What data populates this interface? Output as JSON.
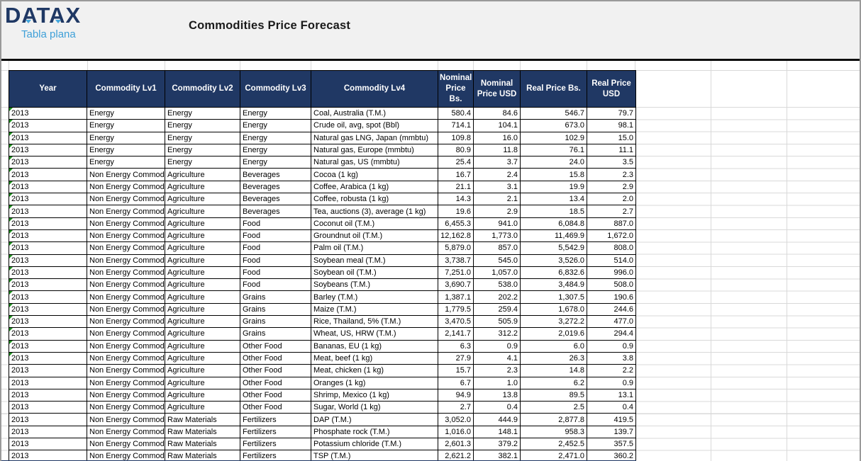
{
  "logo": {
    "name": "DATAX",
    "subtitle": "Tabla plana"
  },
  "header": {
    "title": "Commodities Price Forecast"
  },
  "colors": {
    "header_bg": "#203864",
    "logo_navy": "#1f3864",
    "subtitle_blue": "#3fa0d8",
    "band_bg": "#f1f1f1",
    "indicator_green": "#1e8f1e"
  },
  "table": {
    "columns": [
      "Year",
      "Commodity Lv1",
      "Commodity Lv2",
      "Commodity Lv3",
      "Commodity Lv4",
      "Nominal Price Bs.",
      "Nominal Price USD",
      "Real Price Bs.",
      "Real Price USD"
    ],
    "column_keys": [
      "year",
      "commodity-lv1",
      "commodity-lv2",
      "commodity-lv3",
      "commodity-lv4",
      "nominal-price-bs",
      "nominal-price-usd",
      "real-price-bs",
      "real-price-usd"
    ],
    "numeric_from": 5,
    "rows": [
      {
        "indicator": true,
        "cells": [
          "2013",
          "Energy",
          "Energy",
          "Energy",
          "Coal, Australia (T.M.)",
          "580.4",
          "84.6",
          "546.7",
          "79.7"
        ]
      },
      {
        "indicator": true,
        "cells": [
          "2013",
          "Energy",
          "Energy",
          "Energy",
          "Crude oil, avg, spot (Bbl)",
          "714.1",
          "104.1",
          "673.0",
          "98.1"
        ]
      },
      {
        "indicator": true,
        "cells": [
          "2013",
          "Energy",
          "Energy",
          "Energy",
          "Natural gas LNG, Japan (mmbtu)",
          "109.8",
          "16.0",
          "102.9",
          "15.0"
        ]
      },
      {
        "indicator": true,
        "cells": [
          "2013",
          "Energy",
          "Energy",
          "Energy",
          "Natural gas, Europe (mmbtu)",
          "80.9",
          "11.8",
          "76.1",
          "11.1"
        ]
      },
      {
        "indicator": true,
        "cells": [
          "2013",
          "Energy",
          "Energy",
          "Energy",
          "Natural gas, US (mmbtu)",
          "25.4",
          "3.7",
          "24.0",
          "3.5"
        ]
      },
      {
        "indicator": true,
        "cells": [
          "2013",
          "Non Energy Commodities",
          "Agriculture",
          "Beverages",
          "Cocoa (1 kg)",
          "16.7",
          "2.4",
          "15.8",
          "2.3"
        ]
      },
      {
        "indicator": true,
        "cells": [
          "2013",
          "Non Energy Commodities",
          "Agriculture",
          "Beverages",
          "Coffee, Arabica (1 kg)",
          "21.1",
          "3.1",
          "19.9",
          "2.9"
        ]
      },
      {
        "indicator": true,
        "cells": [
          "2013",
          "Non Energy Commodities",
          "Agriculture",
          "Beverages",
          "Coffee, robusta (1 kg)",
          "14.3",
          "2.1",
          "13.4",
          "2.0"
        ]
      },
      {
        "indicator": true,
        "cells": [
          "2013",
          "Non Energy Commodities",
          "Agriculture",
          "Beverages",
          "Tea, auctions (3), average (1 kg)",
          "19.6",
          "2.9",
          "18.5",
          "2.7"
        ]
      },
      {
        "indicator": true,
        "cells": [
          "2013",
          "Non Energy Commodities",
          "Agriculture",
          "Food",
          "Coconut oil (T.M.)",
          "6,455.3",
          "941.0",
          "6,084.8",
          "887.0"
        ]
      },
      {
        "indicator": true,
        "cells": [
          "2013",
          "Non Energy Commodities",
          "Agriculture",
          "Food",
          "Groundnut oil (T.M.)",
          "12,162.8",
          "1,773.0",
          "11,469.9",
          "1,672.0"
        ]
      },
      {
        "indicator": true,
        "cells": [
          "2013",
          "Non Energy Commodities",
          "Agriculture",
          "Food",
          "Palm oil (T.M.)",
          "5,879.0",
          "857.0",
          "5,542.9",
          "808.0"
        ]
      },
      {
        "indicator": true,
        "cells": [
          "2013",
          "Non Energy Commodities",
          "Agriculture",
          "Food",
          "Soybean meal (T.M.)",
          "3,738.7",
          "545.0",
          "3,526.0",
          "514.0"
        ]
      },
      {
        "indicator": true,
        "cells": [
          "2013",
          "Non Energy Commodities",
          "Agriculture",
          "Food",
          "Soybean oil (T.M.)",
          "7,251.0",
          "1,057.0",
          "6,832.6",
          "996.0"
        ]
      },
      {
        "indicator": true,
        "cells": [
          "2013",
          "Non Energy Commodities",
          "Agriculture",
          "Food",
          "Soybeans (T.M.)",
          "3,690.7",
          "538.0",
          "3,484.9",
          "508.0"
        ]
      },
      {
        "indicator": true,
        "cells": [
          "2013",
          "Non Energy Commodities",
          "Agriculture",
          "Grains",
          "Barley (T.M.)",
          "1,387.1",
          "202.2",
          "1,307.5",
          "190.6"
        ]
      },
      {
        "indicator": true,
        "cells": [
          "2013",
          "Non Energy Commodities",
          "Agriculture",
          "Grains",
          "Maize (T.M.)",
          "1,779.5",
          "259.4",
          "1,678.0",
          "244.6"
        ]
      },
      {
        "indicator": true,
        "cells": [
          "2013",
          "Non Energy Commodities",
          "Agriculture",
          "Grains",
          "Rice, Thailand, 5% (T.M.)",
          "3,470.5",
          "505.9",
          "3,272.2",
          "477.0"
        ]
      },
      {
        "indicator": true,
        "cells": [
          "2013",
          "Non Energy Commodities",
          "Agriculture",
          "Grains",
          "Wheat, US, HRW (T.M.)",
          "2,141.7",
          "312.2",
          "2,019.6",
          "294.4"
        ]
      },
      {
        "indicator": true,
        "cells": [
          "2013",
          "Non Energy Commodities",
          "Agriculture",
          "Other Food",
          "Bananas, EU (1 kg)",
          "6.3",
          "0.9",
          "6.0",
          "0.9"
        ]
      },
      {
        "indicator": true,
        "cells": [
          "2013",
          "Non Energy Commodities",
          "Agriculture",
          "Other Food",
          "Meat, beef (1 kg)",
          "27.9",
          "4.1",
          "26.3",
          "3.8"
        ]
      },
      {
        "indicator": false,
        "cells": [
          "2013",
          "Non Energy Commodities",
          "Agriculture",
          "Other Food",
          "Meat, chicken (1 kg)",
          "15.7",
          "2.3",
          "14.8",
          "2.2"
        ]
      },
      {
        "indicator": false,
        "cells": [
          "2013",
          "Non Energy Commodities",
          "Agriculture",
          "Other Food",
          "Oranges (1 kg)",
          "6.7",
          "1.0",
          "6.2",
          "0.9"
        ]
      },
      {
        "indicator": false,
        "cells": [
          "2013",
          "Non Energy Commodities",
          "Agriculture",
          "Other Food",
          "Shrimp, Mexico (1 kg)",
          "94.9",
          "13.8",
          "89.5",
          "13.1"
        ]
      },
      {
        "indicator": false,
        "cells": [
          "2013",
          "Non Energy Commodities",
          "Agriculture",
          "Other Food",
          "Sugar, World (1 kg)",
          "2.7",
          "0.4",
          "2.5",
          "0.4"
        ]
      },
      {
        "indicator": false,
        "cells": [
          "2013",
          "Non Energy Commodities",
          "Raw Materials",
          "Fertilizers",
          "DAP (T.M.)",
          "3,052.0",
          "444.9",
          "2,877.8",
          "419.5"
        ]
      },
      {
        "indicator": false,
        "cells": [
          "2013",
          "Non Energy Commodities",
          "Raw Materials",
          "Fertilizers",
          "Phosphate rock (T.M.)",
          "1,016.0",
          "148.1",
          "958.3",
          "139.7"
        ]
      },
      {
        "indicator": false,
        "cells": [
          "2013",
          "Non Energy Commodities",
          "Raw Materials",
          "Fertilizers",
          "Potassium chloride (T.M.)",
          "2,601.3",
          "379.2",
          "2,452.5",
          "357.5"
        ]
      },
      {
        "indicator": false,
        "cells": [
          "2013",
          "Non Energy Commodities",
          "Raw Materials",
          "Fertilizers",
          "TSP (T.M.)",
          "2,621.2",
          "382.1",
          "2,471.0",
          "360.2"
        ]
      }
    ]
  }
}
